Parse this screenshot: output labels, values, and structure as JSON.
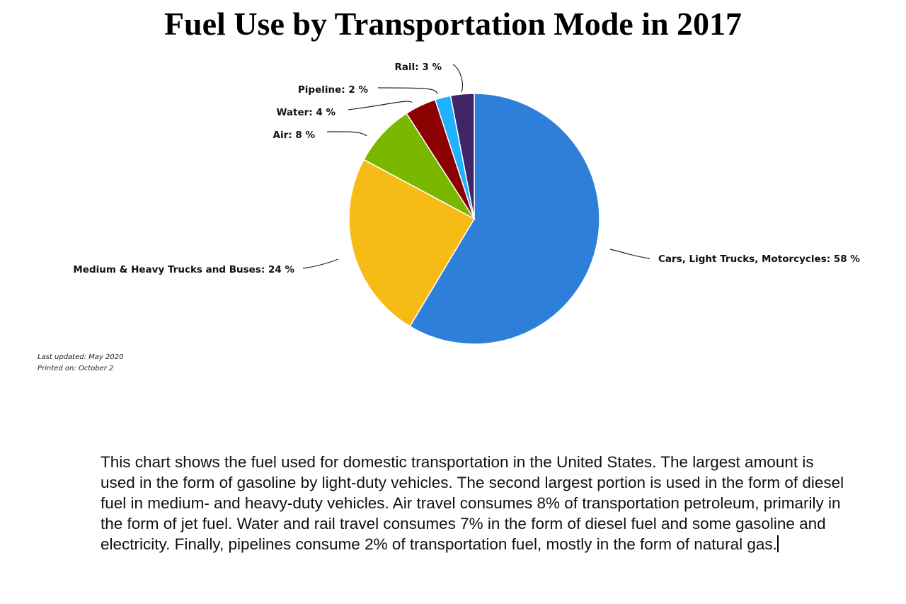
{
  "chart_data": {
    "type": "pie",
    "title": "Fuel Use by Transportation Mode in 2017",
    "slices": [
      {
        "label": "Cars, Light Trucks, Motorcycles: 58 %",
        "value": 58,
        "color": "#2e7fd9"
      },
      {
        "label": "Medium & Heavy Trucks and Buses: 24 %",
        "value": 24,
        "color": "#f7bb16"
      },
      {
        "label": "Air: 8 %",
        "value": 8,
        "color": "#7ab800"
      },
      {
        "label": "Water: 4 %",
        "value": 4,
        "color": "#8b0000"
      },
      {
        "label": "Pipeline: 2 %",
        "value": 2,
        "color": "#1fb2ff"
      },
      {
        "label": "Rail: 3 %",
        "value": 3,
        "color": "#3e2566"
      }
    ],
    "legend": "none"
  },
  "footnotes": {
    "updated": "Last updated: May 2020",
    "printed": "Printed on: October 2"
  },
  "description": "This chart shows the fuel used for domestic transportation in the United States. The largest amount is used in the form of gasoline by light-duty vehicles. The second largest portion is used in the form of diesel fuel in medium- and heavy-duty vehicles. Air travel consumes 8% of transportation petroleum, primarily in the form of jet fuel. Water and rail travel consumes 7% in the form of diesel fuel and some gasoline and electricity. Finally, pipelines consume 2% of transportation fuel, mostly in the form of natural gas."
}
